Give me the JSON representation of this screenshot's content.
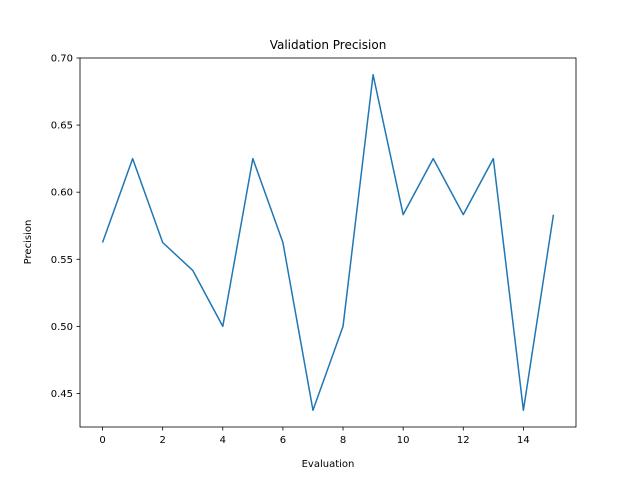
{
  "chart_data": {
    "type": "line",
    "title": "Validation Precision",
    "xlabel": "Evaluation",
    "ylabel": "Precision",
    "xlim": [
      -0.75,
      15.75
    ],
    "ylim": [
      0.425,
      0.7
    ],
    "x_ticks": [
      0,
      2,
      4,
      6,
      8,
      10,
      12,
      14
    ],
    "x_tick_labels": [
      "0",
      "2",
      "4",
      "6",
      "8",
      "10",
      "12",
      "14"
    ],
    "y_ticks": [
      0.45,
      0.5,
      0.55,
      0.6,
      0.65,
      0.7
    ],
    "y_tick_labels": [
      "0.45",
      "0.50",
      "0.55",
      "0.60",
      "0.65",
      "0.70"
    ],
    "grid": false,
    "legend": "none",
    "series": [
      {
        "color": "#1f77b4",
        "x": [
          0,
          1,
          2,
          3,
          4,
          5,
          6,
          7,
          8,
          9,
          10,
          11,
          12,
          13,
          14,
          15
        ],
        "y": [
          0.5625,
          0.625,
          0.5625,
          0.5417,
          0.5,
          0.625,
          0.5625,
          0.4375,
          0.5,
          0.6875,
          0.5833,
          0.625,
          0.5833,
          0.625,
          0.4375,
          0.5833
        ]
      }
    ]
  }
}
